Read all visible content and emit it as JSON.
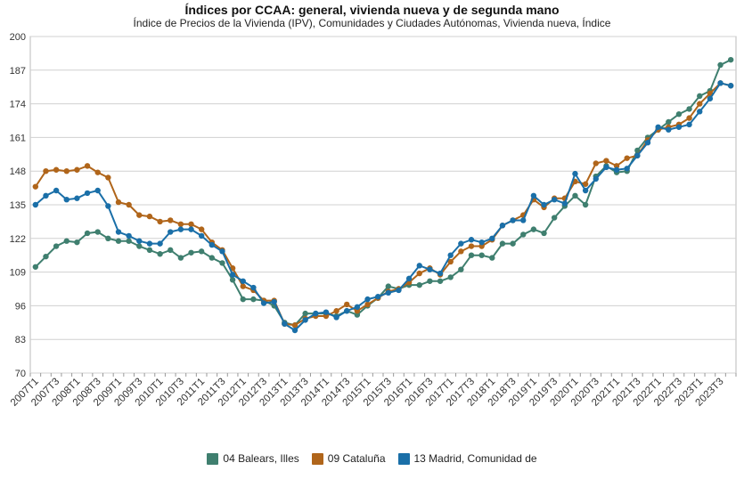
{
  "chart_data": {
    "type": "line",
    "title": "Índices por CCAA: general, vivienda nueva y de segunda mano",
    "subtitle": "Índice de Precios de la Vivienda (IPV), Comunidades y Ciudades Autónomas, Vivienda nueva, Índice",
    "xlabel": "",
    "ylabel": "",
    "ylim": [
      70,
      200
    ],
    "yticks": [
      70,
      83,
      96,
      109,
      122,
      135,
      148,
      161,
      174,
      187,
      200
    ],
    "x": [
      "2007T1",
      "2007T2",
      "2007T3",
      "2007T4",
      "2008T1",
      "2008T2",
      "2008T3",
      "2008T4",
      "2009T1",
      "2009T2",
      "2009T3",
      "2009T4",
      "2010T1",
      "2010T2",
      "2010T3",
      "2010T4",
      "2011T1",
      "2011T2",
      "2011T3",
      "2011T4",
      "2012T1",
      "2012T2",
      "2012T3",
      "2012T4",
      "2013T1",
      "2013T2",
      "2013T3",
      "2013T4",
      "2014T1",
      "2014T2",
      "2014T3",
      "2014T4",
      "2015T1",
      "2015T2",
      "2015T3",
      "2015T4",
      "2016T1",
      "2016T2",
      "2016T3",
      "2016T4",
      "2017T1",
      "2017T2",
      "2017T3",
      "2017T4",
      "2018T1",
      "2018T2",
      "2018T3",
      "2018T4",
      "2019T1",
      "2019T2",
      "2019T3",
      "2019T4",
      "2020T1",
      "2020T2",
      "2020T3",
      "2020T4",
      "2021T1",
      "2021T2",
      "2021T3",
      "2021T4",
      "2022T1",
      "2022T2",
      "2022T3",
      "2022T4",
      "2023T1",
      "2023T2",
      "2023T3",
      "2023T4"
    ],
    "xtick_labels": [
      "2007T1",
      "2007T3",
      "2008T1",
      "2008T3",
      "2009T1",
      "2009T3",
      "2010T1",
      "2010T3",
      "2011T1",
      "2011T3",
      "2012T1",
      "2012T3",
      "2013T1",
      "2013T3",
      "2014T1",
      "2014T3",
      "2015T1",
      "2015T3",
      "2016T1",
      "2016T3",
      "2017T1",
      "2017T3",
      "2018T1",
      "2018T3",
      "2019T1",
      "2019T3",
      "2020T1",
      "2020T3",
      "2021T1",
      "2021T3",
      "2022T1",
      "2022T3",
      "2023T1",
      "2023T3"
    ],
    "grid": true,
    "legend_position": "bottom",
    "series": [
      {
        "name": "04 Balears, Illes",
        "color": "#3f7f6f",
        "values": [
          111,
          115,
          119,
          121,
          120.5,
          124,
          124.5,
          122,
          121,
          121,
          119,
          117.5,
          116,
          117.5,
          114.5,
          116.5,
          117,
          114.5,
          112.5,
          106,
          98.5,
          98.5,
          98,
          96,
          89.5,
          88.5,
          93,
          93,
          93,
          92,
          94,
          92.5,
          96,
          99,
          103.5,
          102.5,
          104,
          104,
          105.5,
          105.5,
          107,
          110,
          115.5,
          115.5,
          114.5,
          120,
          120,
          123.5,
          125.5,
          124,
          130,
          134.5,
          138.5,
          135,
          146,
          150,
          147.5,
          148,
          156,
          161,
          164,
          167,
          170,
          172,
          177,
          179,
          189,
          191
        ]
      },
      {
        "name": "09 Cataluña",
        "color": "#b0651a",
        "values": [
          142,
          148,
          148.5,
          148,
          148.5,
          150,
          147.5,
          145.5,
          136,
          135,
          131,
          130.5,
          128.5,
          129,
          127.5,
          127.5,
          125.5,
          120.5,
          117.5,
          110.5,
          103.5,
          102,
          98,
          98,
          89,
          88.5,
          91,
          92,
          92,
          94,
          96.5,
          94,
          96.5,
          99,
          101.5,
          102.5,
          105,
          108.5,
          110.5,
          108,
          113,
          117,
          119,
          119,
          121.5,
          127,
          129,
          131,
          137,
          134,
          137.5,
          137.5,
          144,
          143,
          151,
          152,
          150,
          153,
          154,
          160,
          164,
          165,
          166,
          168.5,
          174,
          178,
          182,
          181
        ]
      },
      {
        "name": "13 Madrid, Comunidad de",
        "color": "#1a6fa8",
        "values": [
          135,
          138.5,
          140.5,
          137,
          137.5,
          139.5,
          140.5,
          134.5,
          124.5,
          123,
          121,
          120,
          120,
          124.5,
          125.5,
          125.5,
          123,
          119.5,
          117,
          108,
          105.5,
          103,
          97,
          97.5,
          89,
          86.5,
          90.5,
          93,
          93.5,
          91.5,
          94,
          95.5,
          98.5,
          99.5,
          101,
          102,
          106.5,
          111.5,
          110,
          108.5,
          115.5,
          120,
          121.5,
          120.5,
          122,
          127,
          129,
          129,
          138.5,
          135,
          137,
          135.5,
          147,
          140.5,
          145,
          149.5,
          148.5,
          149,
          154,
          159,
          165,
          164,
          165,
          166,
          171,
          176,
          182,
          181
        ]
      }
    ]
  }
}
